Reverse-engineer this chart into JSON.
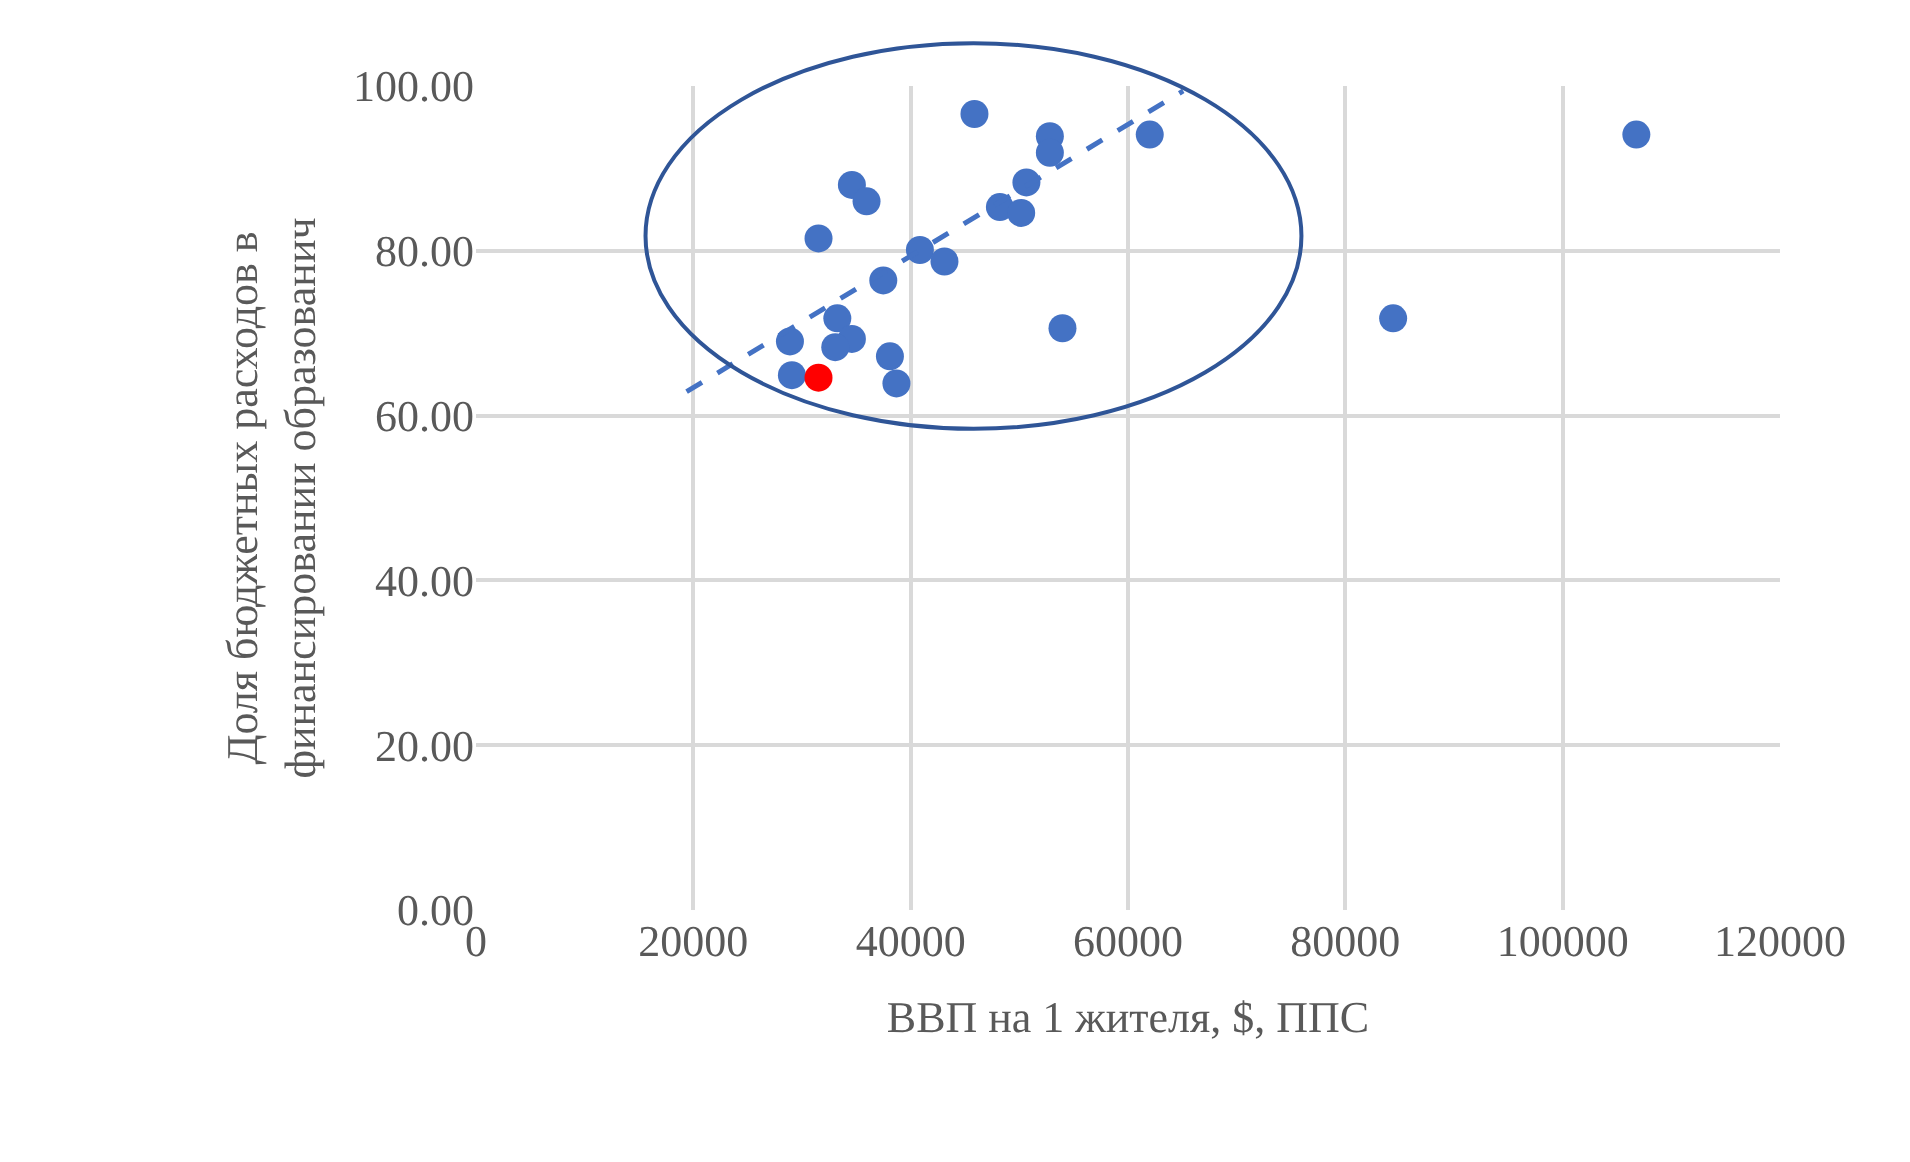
{
  "chart_data": {
    "type": "scatter",
    "xlabel": "ВВП на 1 жителя, $, ППС",
    "ylabel": "Доля бюджетных расходов в\nфинансировании образованич",
    "xlim": [
      0,
      120000
    ],
    "xticks": [
      0,
      20000,
      40000,
      60000,
      80000,
      100000,
      120000
    ],
    "ylim": [
      0,
      100
    ],
    "yticks": [
      {
        "value": 0,
        "label": "0.00"
      },
      {
        "value": 20,
        "label": "20.00"
      },
      {
        "value": 40,
        "label": "40.00"
      },
      {
        "value": 60,
        "label": "60.00"
      },
      {
        "value": 80,
        "label": "80.00"
      },
      {
        "value": 100,
        "label": "100.00"
      }
    ],
    "grid": true,
    "marker": "circle",
    "series": [
      {
        "color": "#4472c4",
        "x": [
          45870,
          52810,
          52810,
          62000,
          50650,
          34590,
          35940,
          48210,
          50170,
          31520,
          40850,
          43110,
          37480,
          33250,
          53970,
          28890,
          34590,
          33060,
          38090,
          29070,
          38690,
          106780,
          84400
        ],
        "values": [
          96.6,
          93.9,
          91.9,
          94.1,
          88.3,
          88.0,
          86.0,
          85.3,
          84.6,
          81.5,
          80.1,
          78.7,
          76.4,
          71.8,
          70.6,
          69.0,
          69.3,
          68.3,
          67.2,
          64.9,
          63.9,
          94.1,
          71.8
        ]
      },
      {
        "color": "#ff0000",
        "x": [
          31520
        ],
        "values": [
          64.6
        ]
      },
      {
        "type": "line",
        "color": "#4472c4",
        "line_style": "dashed",
        "marker": "none",
        "x": [
          19380,
          65080
        ],
        "values": [
          62.9,
          99.4
        ]
      }
    ]
  }
}
